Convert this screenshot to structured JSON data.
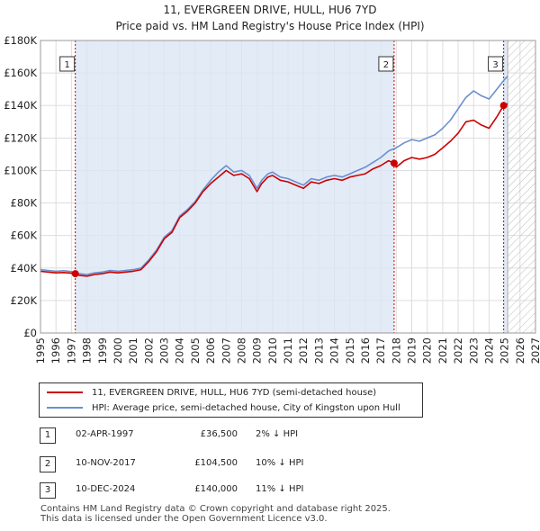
{
  "chart_data": {
    "type": "line",
    "title": "11, EVERGREEN DRIVE, HULL, HU6 7YD",
    "subtitle": "Price paid vs. HM Land Registry's House Price Index (HPI)",
    "xlim": [
      1995,
      2027
    ],
    "ylim": [
      0,
      180000
    ],
    "x_ticks": [
      1995,
      1996,
      1997,
      1998,
      1999,
      2000,
      2001,
      2002,
      2003,
      2004,
      2005,
      2006,
      2007,
      2008,
      2009,
      2010,
      2011,
      2012,
      2013,
      2014,
      2015,
      2016,
      2017,
      2018,
      2019,
      2020,
      2021,
      2022,
      2023,
      2024,
      2025,
      2026,
      2027
    ],
    "y_ticks": [
      0,
      20000,
      40000,
      60000,
      80000,
      100000,
      120000,
      140000,
      160000,
      180000
    ],
    "y_tick_labels": [
      "£0",
      "£20K",
      "£40K",
      "£60K",
      "£80K",
      "£100K",
      "£120K",
      "£140K",
      "£160K",
      "£180K"
    ],
    "data_end": 2025.2,
    "colors": {
      "property": "#cc0000",
      "hpi": "#6a8fcf",
      "shade": "#dce6f5",
      "marker_line": "#cc0000"
    },
    "series": [
      {
        "name": "11, EVERGREEN DRIVE, HULL, HU6 7YD (semi-detached house)",
        "color": "#cc0000",
        "x": [
          1995.0,
          1995.5,
          1996.0,
          1996.5,
          1997.0,
          1997.25,
          1997.5,
          1998.0,
          1998.5,
          1999.0,
          1999.5,
          2000.0,
          2000.5,
          2001.0,
          2001.5,
          2002.0,
          2002.5,
          2003.0,
          2003.5,
          2004.0,
          2004.5,
          2005.0,
          2005.5,
          2006.0,
          2006.5,
          2007.0,
          2007.5,
          2008.0,
          2008.5,
          2009.0,
          2009.3,
          2009.7,
          2010.0,
          2010.5,
          2011.0,
          2011.5,
          2012.0,
          2012.5,
          2013.0,
          2013.5,
          2014.0,
          2014.5,
          2015.0,
          2015.5,
          2016.0,
          2016.5,
          2017.0,
          2017.5,
          2017.86,
          2018.0,
          2018.5,
          2019.0,
          2019.5,
          2020.0,
          2020.5,
          2021.0,
          2021.5,
          2022.0,
          2022.5,
          2023.0,
          2023.5,
          2024.0,
          2024.5,
          2024.94,
          2025.2
        ],
        "values": [
          38000,
          37500,
          37000,
          37200,
          36800,
          36500,
          35500,
          35000,
          36000,
          36500,
          37500,
          37000,
          37500,
          38000,
          39000,
          44000,
          50000,
          58000,
          62000,
          71000,
          75000,
          80000,
          87000,
          92000,
          96000,
          100000,
          97000,
          98000,
          95000,
          87000,
          92000,
          96000,
          97000,
          94000,
          93000,
          91000,
          89000,
          93000,
          92000,
          94000,
          95000,
          94000,
          96000,
          97000,
          98000,
          101000,
          103000,
          106000,
          104500,
          102000,
          106000,
          108000,
          107000,
          108000,
          110000,
          114000,
          118000,
          123000,
          130000,
          131000,
          128000,
          126000,
          133000,
          140000,
          141000
        ]
      },
      {
        "name": "HPI: Average price, semi-detached house, City of Kingston upon Hull",
        "color": "#6a8fcf",
        "x": [
          1995.0,
          1995.5,
          1996.0,
          1996.5,
          1997.0,
          1997.5,
          1998.0,
          1998.5,
          1999.0,
          1999.5,
          2000.0,
          2000.5,
          2001.0,
          2001.5,
          2002.0,
          2002.5,
          2003.0,
          2003.5,
          2004.0,
          2004.5,
          2005.0,
          2005.5,
          2006.0,
          2006.5,
          2007.0,
          2007.5,
          2008.0,
          2008.5,
          2009.0,
          2009.3,
          2009.7,
          2010.0,
          2010.5,
          2011.0,
          2011.5,
          2012.0,
          2012.5,
          2013.0,
          2013.5,
          2014.0,
          2014.5,
          2015.0,
          2015.5,
          2016.0,
          2016.5,
          2017.0,
          2017.5,
          2018.0,
          2018.5,
          2019.0,
          2019.5,
          2020.0,
          2020.5,
          2021.0,
          2021.5,
          2022.0,
          2022.5,
          2023.0,
          2023.5,
          2024.0,
          2024.5,
          2025.0,
          2025.2
        ],
        "values": [
          39000,
          38500,
          38000,
          38300,
          37800,
          36500,
          36000,
          37000,
          37500,
          38500,
          38000,
          38500,
          39000,
          40000,
          45000,
          51000,
          59000,
          63000,
          72000,
          76000,
          81000,
          88000,
          94000,
          99000,
          103000,
          99000,
          100000,
          97000,
          89000,
          94000,
          98000,
          99000,
          96000,
          95000,
          93000,
          91000,
          95000,
          94000,
          96000,
          97000,
          96000,
          98000,
          100000,
          102000,
          105000,
          108000,
          112000,
          114000,
          117000,
          119000,
          118000,
          120000,
          122000,
          126000,
          131000,
          138000,
          145000,
          149000,
          146000,
          144000,
          150000,
          156000,
          158000
        ]
      }
    ],
    "annotations": [
      {
        "label": "1",
        "x": 1997.25,
        "price": 36500
      },
      {
        "label": "2",
        "x": 2017.86,
        "price": 104500
      },
      {
        "label": "3",
        "x": 2024.94,
        "price": 140000
      }
    ]
  },
  "legend": {
    "property": "11, EVERGREEN DRIVE, HULL, HU6 7YD (semi-detached house)",
    "hpi": "HPI: Average price, semi-detached house, City of Kingston upon Hull"
  },
  "transactions": [
    {
      "num": "1",
      "date": "02-APR-1997",
      "price": "£36,500",
      "hpi": "2% ↓ HPI"
    },
    {
      "num": "2",
      "date": "10-NOV-2017",
      "price": "£104,500",
      "hpi": "10% ↓ HPI"
    },
    {
      "num": "3",
      "date": "10-DEC-2024",
      "price": "£140,000",
      "hpi": "11% ↓ HPI"
    }
  ],
  "footer": {
    "line1": "Contains HM Land Registry data © Crown copyright and database right 2025.",
    "line2": "This data is licensed under the Open Government Licence v3.0."
  }
}
